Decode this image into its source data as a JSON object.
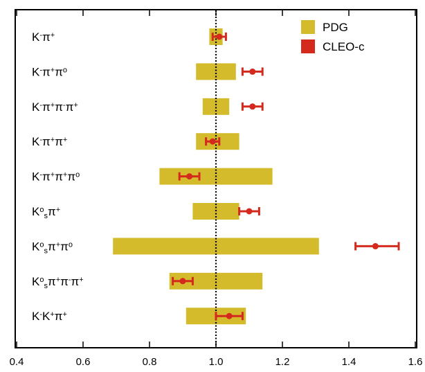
{
  "chart_data": {
    "type": "error-bar comparison",
    "title": "",
    "xlabel": "",
    "ylabel": "",
    "xlim": [
      0.4,
      1.6
    ],
    "x_ticks": [
      "0.4",
      "0.6",
      "0.8",
      "1.0",
      "1.2",
      "1.4",
      "1.6"
    ],
    "reference_line": {
      "x": 1.0,
      "style": "dotted"
    },
    "grid": false,
    "legend": {
      "placement": "top-right",
      "entries": [
        {
          "name": "PDG",
          "color": "#d4bb2c"
        },
        {
          "name": "CLEO-c",
          "color": "#d42a1e"
        }
      ]
    },
    "categories": [
      "K⁻π⁺",
      "K⁻π⁺π⁰",
      "K⁻π⁺π⁻π⁺",
      "K⁻π⁺π⁺",
      "K⁻π⁺π⁺π⁰",
      "K⁰sπ⁺",
      "K⁰sπ⁺π⁰",
      "K⁰sπ⁺π⁻π⁺",
      "K⁻K⁺π⁺"
    ],
    "label_parts": [
      [
        [
          "K",
          ""
        ],
        [
          "-",
          "sup"
        ],
        [
          "π",
          ""
        ],
        [
          "+",
          "sup"
        ]
      ],
      [
        [
          "K",
          ""
        ],
        [
          "-",
          "sup"
        ],
        [
          "π",
          ""
        ],
        [
          "+",
          "sup"
        ],
        [
          "π",
          ""
        ],
        [
          "o",
          "sup"
        ]
      ],
      [
        [
          "K",
          ""
        ],
        [
          "-",
          "sup"
        ],
        [
          "π",
          ""
        ],
        [
          "+",
          "sup"
        ],
        [
          "π",
          ""
        ],
        [
          "-",
          "sup"
        ],
        [
          "π",
          ""
        ],
        [
          "+",
          "sup"
        ]
      ],
      [
        [
          "K",
          ""
        ],
        [
          "-",
          "sup"
        ],
        [
          "π",
          ""
        ],
        [
          "+",
          "sup"
        ],
        [
          "π",
          ""
        ],
        [
          "+",
          "sup"
        ]
      ],
      [
        [
          "K",
          ""
        ],
        [
          "-",
          "sup"
        ],
        [
          "π",
          ""
        ],
        [
          "+",
          "sup"
        ],
        [
          "π",
          ""
        ],
        [
          "+",
          "sup"
        ],
        [
          "π",
          ""
        ],
        [
          "o",
          "sup"
        ]
      ],
      [
        [
          "K",
          ""
        ],
        [
          "o",
          "sup"
        ],
        [
          "s",
          "sub"
        ],
        [
          "π",
          ""
        ],
        [
          "+",
          "sup"
        ]
      ],
      [
        [
          "K",
          ""
        ],
        [
          "o",
          "sup"
        ],
        [
          "s",
          "sub"
        ],
        [
          "π",
          ""
        ],
        [
          "+",
          "sup"
        ],
        [
          "π",
          ""
        ],
        [
          "o",
          "sup"
        ]
      ],
      [
        [
          "K",
          ""
        ],
        [
          "o",
          "sup"
        ],
        [
          "s",
          "sub"
        ],
        [
          "π",
          ""
        ],
        [
          "+",
          "sup"
        ],
        [
          "π",
          ""
        ],
        [
          "-",
          "sup"
        ],
        [
          "π",
          ""
        ],
        [
          "+",
          "sup"
        ]
      ],
      [
        [
          "K",
          ""
        ],
        [
          "-",
          "sup"
        ],
        [
          "K",
          ""
        ],
        [
          "+",
          "sup"
        ],
        [
          "π",
          ""
        ],
        [
          "+",
          "sup"
        ]
      ]
    ],
    "series": [
      {
        "name": "PDG",
        "kind": "band",
        "low": [
          0.98,
          0.94,
          0.96,
          0.94,
          0.83,
          0.93,
          0.69,
          0.86,
          0.91
        ],
        "high": [
          1.02,
          1.06,
          1.04,
          1.07,
          1.17,
          1.07,
          1.31,
          1.14,
          1.09
        ]
      },
      {
        "name": "CLEO-c",
        "kind": "point-error",
        "values": [
          1.01,
          1.11,
          1.11,
          0.99,
          0.92,
          1.1,
          1.48,
          0.9,
          1.04
        ],
        "err_low": [
          0.02,
          0.03,
          0.03,
          0.02,
          0.03,
          0.03,
          0.06,
          0.03,
          0.04
        ],
        "err_high": [
          0.02,
          0.03,
          0.03,
          0.02,
          0.03,
          0.03,
          0.07,
          0.03,
          0.04
        ]
      }
    ]
  }
}
